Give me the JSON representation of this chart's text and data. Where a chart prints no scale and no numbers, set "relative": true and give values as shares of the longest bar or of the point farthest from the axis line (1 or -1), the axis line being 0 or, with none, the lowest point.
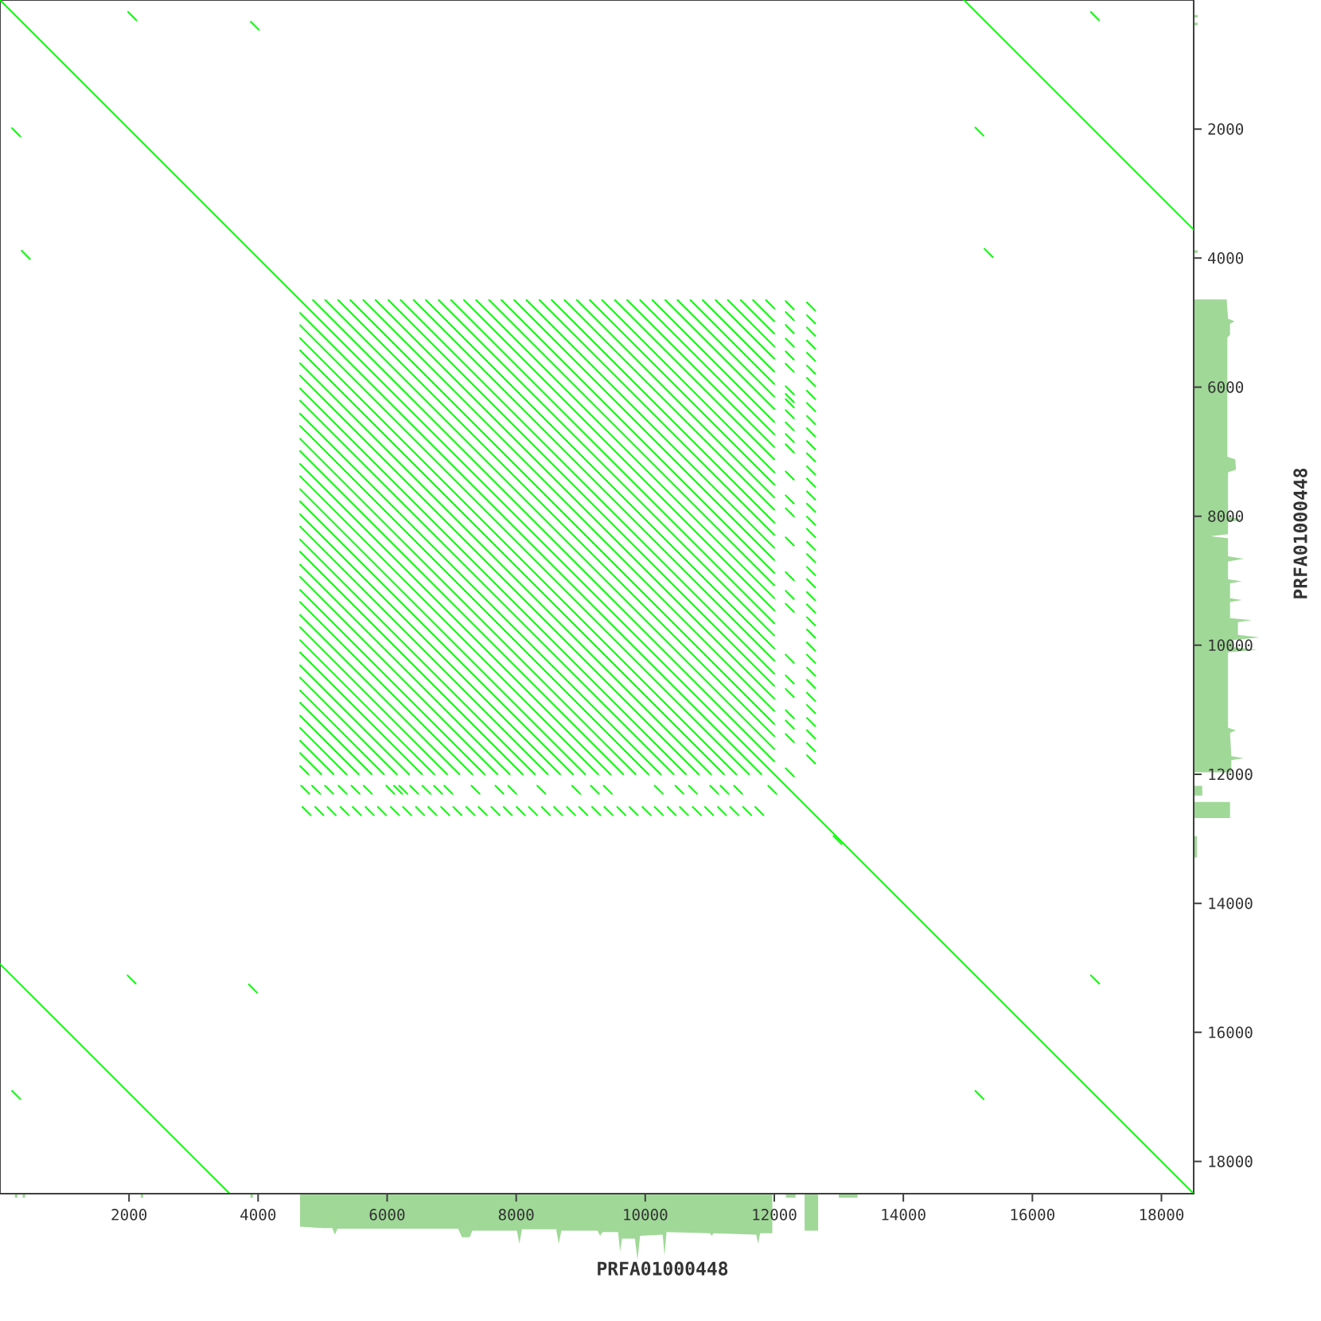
{
  "chart_data": [
    {
      "type": "line",
      "xlabel": "PRFA01000448",
      "ylabel": "PRFA01000448",
      "xlim": [
        0,
        18500
      ],
      "ylim": [
        18500,
        0
      ],
      "yticks": [
        2000,
        4000,
        6000,
        8000,
        10000,
        12000,
        14000,
        16000,
        18000
      ],
      "tick_labels": "y",
      "color": "#00ff00",
      "series": [
        {
          "x": [
            0,
            18500
          ],
          "values": [
            0,
            18500
          ]
        },
        {
          "x": [
            14940,
            18500
          ],
          "values": [
            0,
            3560
          ]
        },
        {
          "x": [
            0,
            3560
          ],
          "values": [
            14940,
            18500
          ]
        },
        {
          "x": [
            4850,
            12000
          ],
          "values": [
            4650,
            11800
          ]
        },
        {
          "x": [
            5040,
            12000
          ],
          "values": [
            4650,
            11610
          ]
        },
        {
          "x": [
            5240,
            12000
          ],
          "values": [
            4650,
            11410
          ]
        },
        {
          "x": [
            5430,
            12000
          ],
          "values": [
            4650,
            11220
          ]
        },
        {
          "x": [
            5630,
            12000
          ],
          "values": [
            4650,
            11020
          ]
        },
        {
          "x": [
            5820,
            12000
          ],
          "values": [
            4650,
            10830
          ]
        },
        {
          "x": [
            6020,
            12000
          ],
          "values": [
            4650,
            10630
          ]
        },
        {
          "x": [
            6210,
            12000
          ],
          "values": [
            4650,
            10440
          ]
        },
        {
          "x": [
            6410,
            12000
          ],
          "values": [
            4650,
            10240
          ]
        },
        {
          "x": [
            6600,
            12000
          ],
          "values": [
            4650,
            10050
          ]
        },
        {
          "x": [
            6800,
            12000
          ],
          "values": [
            4650,
            9850
          ]
        },
        {
          "x": [
            6990,
            12000
          ],
          "values": [
            4650,
            9660
          ]
        },
        {
          "x": [
            7190,
            12000
          ],
          "values": [
            4650,
            9460
          ]
        },
        {
          "x": [
            7380,
            12000
          ],
          "values": [
            4650,
            9270
          ]
        },
        {
          "x": [
            7580,
            12000
          ],
          "values": [
            4650,
            9070
          ]
        },
        {
          "x": [
            7770,
            12000
          ],
          "values": [
            4650,
            8880
          ]
        },
        {
          "x": [
            7970,
            12000
          ],
          "values": [
            4650,
            8680
          ]
        },
        {
          "x": [
            8160,
            12000
          ],
          "values": [
            4650,
            8490
          ]
        },
        {
          "x": [
            8360,
            12000
          ],
          "values": [
            4650,
            8290
          ]
        },
        {
          "x": [
            8550,
            12000
          ],
          "values": [
            4650,
            8100
          ]
        },
        {
          "x": [
            8750,
            12000
          ],
          "values": [
            4650,
            7900
          ]
        },
        {
          "x": [
            8940,
            12000
          ],
          "values": [
            4650,
            7710
          ]
        },
        {
          "x": [
            9140,
            12000
          ],
          "values": [
            4650,
            7510
          ]
        },
        {
          "x": [
            9330,
            12000
          ],
          "values": [
            4650,
            7320
          ]
        },
        {
          "x": [
            9530,
            12000
          ],
          "values": [
            4650,
            7120
          ]
        },
        {
          "x": [
            9720,
            12000
          ],
          "values": [
            4650,
            6930
          ]
        },
        {
          "x": [
            9920,
            12000
          ],
          "values": [
            4650,
            6730
          ]
        },
        {
          "x": [
            10110,
            12000
          ],
          "values": [
            4650,
            6540
          ]
        },
        {
          "x": [
            10310,
            12000
          ],
          "values": [
            4650,
            6340
          ]
        },
        {
          "x": [
            10500,
            12000
          ],
          "values": [
            4650,
            6150
          ]
        },
        {
          "x": [
            10700,
            12000
          ],
          "values": [
            4650,
            5950
          ]
        },
        {
          "x": [
            10890,
            12000
          ],
          "values": [
            4650,
            5760
          ]
        },
        {
          "x": [
            11090,
            12000
          ],
          "values": [
            4650,
            5560
          ]
        },
        {
          "x": [
            11280,
            12000
          ],
          "values": [
            4650,
            5370
          ]
        },
        {
          "x": [
            11480,
            12000
          ],
          "values": [
            4650,
            5170
          ]
        },
        {
          "x": [
            11670,
            12000
          ],
          "values": [
            4650,
            4980
          ]
        },
        {
          "x": [
            11870,
            12000
          ],
          "values": [
            4650,
            4780
          ]
        },
        {
          "x": [
            4650,
            11800
          ],
          "values": [
            4850,
            12000
          ]
        },
        {
          "x": [
            4650,
            11610
          ],
          "values": [
            5040,
            12000
          ]
        },
        {
          "x": [
            4650,
            11410
          ],
          "values": [
            5240,
            12000
          ]
        },
        {
          "x": [
            4650,
            11220
          ],
          "values": [
            5430,
            12000
          ]
        },
        {
          "x": [
            4650,
            11020
          ],
          "values": [
            5630,
            12000
          ]
        },
        {
          "x": [
            4650,
            10830
          ],
          "values": [
            5820,
            12000
          ]
        },
        {
          "x": [
            4650,
            10630
          ],
          "values": [
            6020,
            12000
          ]
        },
        {
          "x": [
            4650,
            10440
          ],
          "values": [
            6210,
            12000
          ]
        },
        {
          "x": [
            4650,
            10240
          ],
          "values": [
            6410,
            12000
          ]
        },
        {
          "x": [
            4650,
            10050
          ],
          "values": [
            6600,
            12000
          ]
        },
        {
          "x": [
            4650,
            9850
          ],
          "values": [
            6800,
            12000
          ]
        },
        {
          "x": [
            4650,
            9660
          ],
          "values": [
            6990,
            12000
          ]
        },
        {
          "x": [
            4650,
            9460
          ],
          "values": [
            7190,
            12000
          ]
        },
        {
          "x": [
            4650,
            9270
          ],
          "values": [
            7380,
            12000
          ]
        },
        {
          "x": [
            4650,
            9070
          ],
          "values": [
            7580,
            12000
          ]
        },
        {
          "x": [
            4650,
            8880
          ],
          "values": [
            7770,
            12000
          ]
        },
        {
          "x": [
            4650,
            8680
          ],
          "values": [
            7970,
            12000
          ]
        },
        {
          "x": [
            4650,
            8490
          ],
          "values": [
            8160,
            12000
          ]
        },
        {
          "x": [
            4650,
            8290
          ],
          "values": [
            8360,
            12000
          ]
        },
        {
          "x": [
            4650,
            8100
          ],
          "values": [
            8550,
            12000
          ]
        },
        {
          "x": [
            4650,
            7900
          ],
          "values": [
            8750,
            12000
          ]
        },
        {
          "x": [
            4650,
            7710
          ],
          "values": [
            8940,
            12000
          ]
        },
        {
          "x": [
            4650,
            7510
          ],
          "values": [
            9140,
            12000
          ]
        },
        {
          "x": [
            4650,
            7320
          ],
          "values": [
            9330,
            12000
          ]
        },
        {
          "x": [
            4650,
            7120
          ],
          "values": [
            9530,
            12000
          ]
        },
        {
          "x": [
            4650,
            6930
          ],
          "values": [
            9720,
            12000
          ]
        },
        {
          "x": [
            4650,
            6730
          ],
          "values": [
            9920,
            12000
          ]
        },
        {
          "x": [
            4650,
            6540
          ],
          "values": [
            10110,
            12000
          ]
        },
        {
          "x": [
            4650,
            6340
          ],
          "values": [
            10310,
            12000
          ]
        },
        {
          "x": [
            4650,
            6150
          ],
          "values": [
            10500,
            12000
          ]
        },
        {
          "x": [
            4650,
            5950
          ],
          "values": [
            10700,
            12000
          ]
        },
        {
          "x": [
            4650,
            5760
          ],
          "values": [
            10890,
            12000
          ]
        },
        {
          "x": [
            4650,
            5560
          ],
          "values": [
            11090,
            12000
          ]
        },
        {
          "x": [
            4650,
            5370
          ],
          "values": [
            11280,
            12000
          ]
        },
        {
          "x": [
            4650,
            5170
          ],
          "values": [
            11480,
            12000
          ]
        },
        {
          "x": [
            4650,
            4980
          ],
          "values": [
            11670,
            12000
          ]
        },
        {
          "x": [
            4650,
            4780
          ],
          "values": [
            11870,
            12000
          ]
        },
        {
          "type": "scatter",
          "x": [
            2050,
            3950,
            250,
            400,
            15180,
            16970,
            15320,
            2040,
            250,
            3920,
            15180,
            16970,
            12980,
            4750,
            4950,
            5140,
            5340,
            5530,
            5730,
            5920,
            6120,
            6310,
            6510,
            6700,
            6900,
            7090,
            7290,
            7480,
            7680,
            7870,
            8070,
            8260,
            8460,
            8650,
            8850,
            9040,
            9240,
            9430,
            9630,
            9820,
            10020,
            10210,
            10410,
            10600,
            10800,
            10990,
            11190,
            11380,
            11580,
            11770,
            4730,
            4900,
            5100,
            5310,
            5510,
            5700,
            6050,
            6170,
            6250,
            6420,
            6610,
            6790,
            6950,
            7370,
            7740,
            7940,
            8390,
            8930,
            9220,
            9420,
            10210,
            10530,
            10740,
            11070,
            11230,
            11440,
            11970,
            12570,
            12570,
            12570,
            12570,
            12570,
            12570,
            12570,
            12570,
            12570,
            12570,
            12570,
            12570,
            12570,
            12570,
            12570,
            12570,
            12570,
            12570,
            12570,
            12570,
            12570,
            12570,
            12570,
            12570,
            12570,
            12570,
            12570,
            12570,
            12570,
            12570,
            12570,
            12570,
            12570,
            12570,
            12570,
            12570,
            12570,
            12240,
            12240,
            12240,
            12240,
            12240,
            12240,
            12240,
            12240,
            12240,
            12240,
            12240,
            12240,
            12240,
            12240,
            12240,
            12240,
            12240,
            12240,
            12240,
            12240,
            12240,
            12240,
            12240,
            12240,
            12240,
            12240,
            12240
          ],
          "values": [
            250,
            400,
            2050,
            3950,
            2040,
            250,
            3920,
            15180,
            16970,
            15320,
            16970,
            15180,
            13020,
            12570,
            12570,
            12570,
            12570,
            12570,
            12570,
            12570,
            12570,
            12570,
            12570,
            12570,
            12570,
            12570,
            12570,
            12570,
            12570,
            12570,
            12570,
            12570,
            12570,
            12570,
            12570,
            12570,
            12570,
            12570,
            12570,
            12570,
            12570,
            12570,
            12570,
            12570,
            12570,
            12570,
            12570,
            12570,
            12570,
            12570,
            12240,
            12240,
            12240,
            12240,
            12240,
            12240,
            12240,
            12240,
            12240,
            12240,
            12240,
            12240,
            12240,
            12240,
            12240,
            12240,
            12240,
            12240,
            12240,
            12240,
            12240,
            12240,
            12240,
            12240,
            12240,
            12240,
            12240,
            4750,
            4950,
            5140,
            5340,
            5530,
            5730,
            5920,
            6120,
            6310,
            6510,
            6700,
            6900,
            7090,
            7290,
            7480,
            7680,
            7870,
            8070,
            8260,
            8460,
            8650,
            8850,
            9040,
            9240,
            9430,
            9630,
            9820,
            10020,
            10210,
            10410,
            10600,
            10800,
            10990,
            11190,
            11380,
            11580,
            11770,
            4730,
            4900,
            5100,
            5310,
            5510,
            5700,
            6050,
            6170,
            6250,
            6420,
            6610,
            6790,
            6950,
            7370,
            7740,
            7940,
            8390,
            8930,
            9220,
            9420,
            10210,
            10530,
            10740,
            11070,
            11230,
            11440,
            11970
          ]
        }
      ]
    },
    {
      "type": "area",
      "relative": true,
      "tick_labels": "x",
      "xlim": [
        0,
        18500
      ],
      "xticks": [
        2000,
        4000,
        6000,
        8000,
        10000,
        12000,
        14000,
        16000,
        18000
      ],
      "color": "#a0d898",
      "x": [
        0,
        230,
        230,
        270,
        270,
        350,
        350,
        390,
        390,
        2180,
        2180,
        2220,
        2220,
        3880,
        3880,
        3920,
        3920,
        4650,
        4650,
        5000,
        5150,
        5190,
        5230,
        7100,
        7160,
        7280,
        7320,
        8010,
        8050,
        8090,
        8620,
        8660,
        8700,
        9260,
        9300,
        9340,
        9580,
        9610,
        9640,
        9840,
        9880,
        9920,
        10270,
        10300,
        10330,
        11000,
        11030,
        11060,
        11720,
        11750,
        11780,
        11970,
        11970,
        12180,
        12180,
        12330,
        12330,
        12470,
        12470,
        12680,
        12680,
        13000,
        13000,
        13290,
        13290,
        18500
      ],
      "values": [
        0,
        0,
        -0.06,
        -0.06,
        0,
        0,
        -0.06,
        -0.06,
        0,
        0,
        -0.06,
        -0.06,
        0,
        0,
        -0.06,
        -0.06,
        0,
        0,
        -0.5,
        -0.52,
        -0.52,
        -0.62,
        -0.53,
        -0.53,
        -0.66,
        -0.66,
        -0.56,
        -0.56,
        -0.76,
        -0.54,
        -0.54,
        -0.76,
        -0.56,
        -0.56,
        -0.64,
        -0.58,
        -0.58,
        -0.88,
        -0.68,
        -0.68,
        -1,
        -0.64,
        -0.62,
        -0.94,
        -0.58,
        -0.6,
        -0.64,
        -0.6,
        -0.62,
        -0.76,
        -0.6,
        -0.6,
        0,
        0,
        -0.06,
        -0.06,
        0,
        0,
        -0.56,
        -0.56,
        0,
        0,
        -0.06,
        -0.06,
        0,
        0
      ]
    },
    {
      "type": "area",
      "relative": true,
      "orientation": "horizontal",
      "tick_labels": false,
      "ylim": [
        18500,
        0
      ],
      "color": "#a0d898",
      "x": [
        0,
        230,
        230,
        270,
        270,
        350,
        350,
        390,
        390,
        3880,
        3880,
        3920,
        3920,
        4640,
        4640,
        4940,
        4980,
        5020,
        5190,
        5230,
        7080,
        7120,
        7280,
        7320,
        8010,
        8050,
        8090,
        8280,
        8310,
        8340,
        8620,
        8660,
        8700,
        8980,
        9010,
        9040,
        9270,
        9300,
        9330,
        9580,
        9610,
        9640,
        9840,
        9880,
        9920,
        10030,
        10070,
        10110,
        11280,
        11320,
        11360,
        11720,
        11750,
        11780,
        11970,
        11970,
        12180,
        12180,
        12330,
        12330,
        12430,
        12430,
        12680,
        12680,
        12960,
        12960,
        13290,
        13290,
        18500
      ],
      "values": [
        0,
        0,
        0.06,
        0.06,
        0,
        0,
        0.06,
        0.06,
        0,
        0,
        0.06,
        0.06,
        0,
        0,
        0.5,
        0.52,
        0.62,
        0.55,
        0.55,
        0.51,
        0.51,
        0.63,
        0.64,
        0.52,
        0.52,
        0.76,
        0.52,
        0.52,
        0.25,
        0.52,
        0.52,
        0.76,
        0.52,
        0.52,
        0.73,
        0.55,
        0.55,
        0.73,
        0.55,
        0.55,
        0.88,
        0.67,
        0.67,
        1,
        0.6,
        0.6,
        0.96,
        0.52,
        0.52,
        0.64,
        0.55,
        0.57,
        0.76,
        0.57,
        0.57,
        0,
        0,
        0.13,
        0.13,
        0,
        0,
        0.55,
        0.55,
        0,
        0,
        0.05,
        0.05,
        0,
        0
      ]
    }
  ]
}
